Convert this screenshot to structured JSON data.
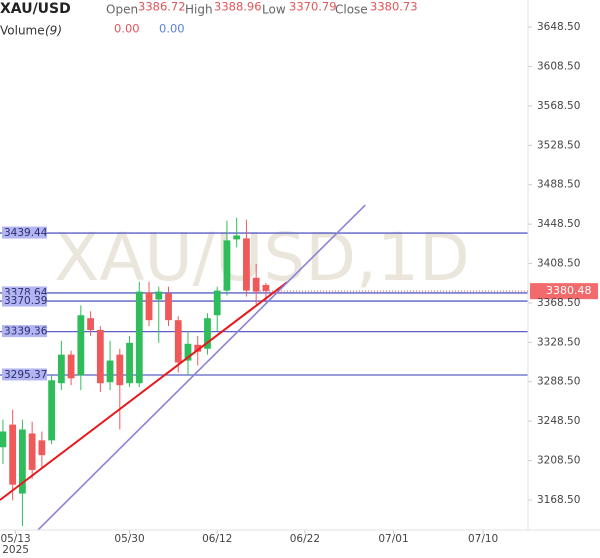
{
  "chart_data": {
    "type": "candlestick",
    "title": "XAU/USD",
    "legend": {
      "labels": [
        "Open",
        "High",
        "Low",
        "Close"
      ],
      "values": [
        "3386.72",
        "3388.96",
        "3370.79",
        "3380.73"
      ]
    },
    "volume": {
      "label": "Volume",
      "period": "(9)",
      "values": [
        "0.00",
        "0.00"
      ]
    },
    "watermark": "XAU/USD,1D",
    "open": [
      3222,
      3245,
      3175,
      3236,
      3229,
      3229,
      3287,
      3316,
      3295,
      3353,
      3341,
      3288,
      3316,
      3287,
      3287,
      3379,
      3372,
      3378,
      3351,
      3310,
      3326,
      3322,
      3356,
      3381,
      3433,
      3434,
      3394,
      3386.72
    ],
    "high": [
      3250,
      3260,
      3250,
      3248,
      3238,
      3295,
      3330,
      3320,
      3366,
      3360,
      3345,
      3330,
      3322,
      3335,
      3390,
      3390,
      3385,
      3385,
      3355,
      3340,
      3335,
      3358,
      3385,
      3452,
      3455,
      3453,
      3408,
      3388.96
    ],
    "low": [
      3205,
      3168,
      3142,
      3190,
      3200,
      3225,
      3280,
      3285,
      3280,
      3335,
      3278,
      3280,
      3240,
      3283,
      3283,
      3345,
      3328,
      3345,
      3298,
      3295,
      3305,
      3316,
      3340,
      3376,
      3425,
      3375,
      3367,
      3370.79
    ],
    "close": [
      3238,
      3184,
      3240,
      3199,
      3214,
      3290,
      3316,
      3292,
      3356,
      3341,
      3287,
      3310,
      3285,
      3328,
      3380,
      3351,
      3380,
      3351,
      3308,
      3327,
      3319,
      3353,
      3381,
      3432,
      3437,
      3381,
      3380,
      3380.73
    ],
    "up_color": "#2fbd5b",
    "down_color": "#f0595a",
    "levels": [
      3439.44,
      3378.64,
      3370.39,
      3339.36,
      3295.37
    ],
    "level_color": "#5b5fc7",
    "last_price": 3380.48,
    "trendlines": [
      {
        "color": "#e8191c",
        "x": [
          -0.3,
          29.2
        ],
        "y": [
          3168.5,
          3389.7
        ]
      },
      {
        "color": "#8a83d6",
        "x": [
          3.6,
          37.2
        ],
        "y": [
          3138.1,
          3467.9
        ]
      }
    ],
    "xlim": [
      -0.3,
      53.6
    ],
    "ylim": [
      3138,
      3676
    ],
    "xticks": [
      {
        "value": 1.3,
        "label": "05/13"
      },
      {
        "value": 13,
        "label": "05/30"
      },
      {
        "value": 22,
        "label": "06/12"
      },
      {
        "value": 31,
        "label": "06/22"
      },
      {
        "value": 40.1,
        "label": "07/01"
      },
      {
        "value": 49.3,
        "label": "07/10"
      }
    ],
    "year_label": "2025",
    "yticks": [
      {
        "value": 3168.5,
        "label": "3168.50"
      },
      {
        "value": 3208.5,
        "label": "3208.50"
      },
      {
        "value": 3248.5,
        "label": "3248.50"
      },
      {
        "value": 3288.5,
        "label": "3288.50"
      },
      {
        "value": 3328.5,
        "label": "3328.50"
      },
      {
        "value": 3368.5,
        "label": "3368.50"
      },
      {
        "value": 3408.5,
        "label": "3408.50"
      },
      {
        "value": 3448.5,
        "label": "3448.50"
      },
      {
        "value": 3488.5,
        "label": "3488.50"
      },
      {
        "value": 3528.5,
        "label": "3528.50"
      },
      {
        "value": 3568.5,
        "label": "3568.50"
      },
      {
        "value": 3608.5,
        "label": "3608.50"
      },
      {
        "value": 3648.5,
        "label": "3648.50"
      }
    ]
  }
}
